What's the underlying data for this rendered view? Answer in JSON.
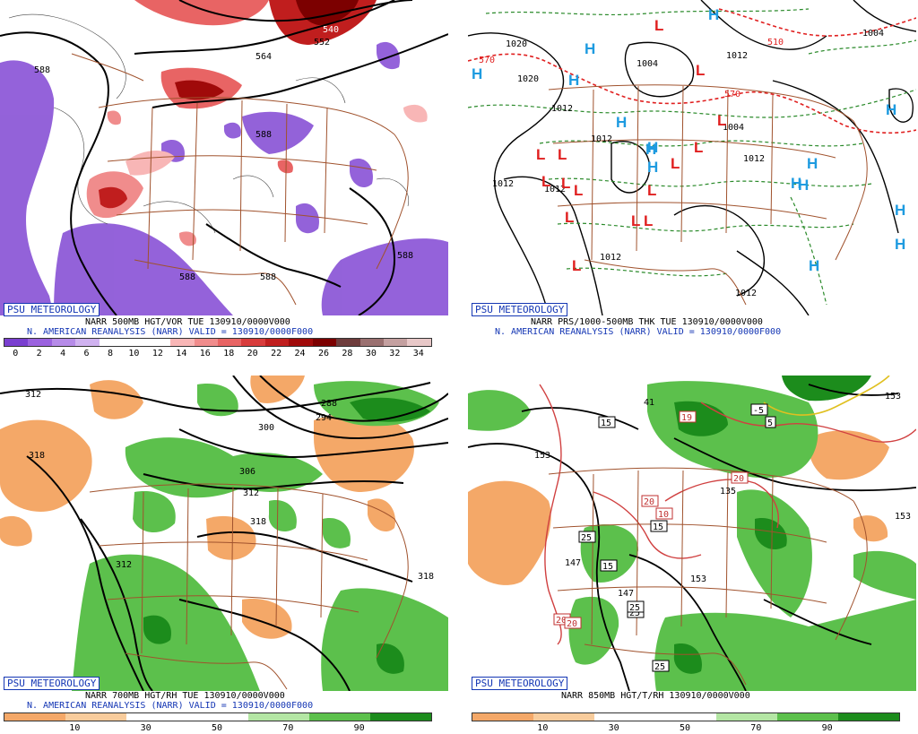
{
  "panels": [
    {
      "id": "vor500",
      "badge": "PSU METEOROLOGY",
      "caption1": "NARR 500MB HGT/VOR TUE 130910/0000V000",
      "caption2": "N. AMERICAN REANALYSIS (NARR) VALID = 130910/0000F000",
      "colorbar": {
        "colors": [
          "#7a3fd0",
          "#9b62df",
          "#b68be8",
          "#d0b2f0",
          "#ffffff",
          "#ffffff",
          "#ffffff",
          "#f8b6b6",
          "#f08c8c",
          "#e86464",
          "#d83c3c",
          "#c01e1e",
          "#a00a0a",
          "#7c0000",
          "#6e3c3c",
          "#9a7070",
          "#c4a0a0",
          "#e8c8c8"
        ],
        "ticks": [
          "0",
          "2",
          "4",
          "6",
          "8",
          "10",
          "12",
          "14",
          "16",
          "18",
          "20",
          "22",
          "24",
          "26",
          "28",
          "30",
          "32",
          "34"
        ]
      },
      "contour_labels": [
        "588",
        "564",
        "540",
        "552",
        "588",
        "588",
        "588",
        "588"
      ]
    },
    {
      "id": "prs",
      "badge": "PSU METEOROLOGY",
      "caption1": "NARR PRS/1000-500MB THK TUE 130910/0000V000",
      "caption2": "N. AMERICAN REANALYSIS (NARR) VALID = 130910/0000F000",
      "pressure_labels": [
        "1020",
        "1020",
        "1004",
        "1012",
        "1012",
        "1012",
        "1012",
        "1012",
        "1012",
        "1004",
        "1004",
        "1012",
        "1012"
      ],
      "thickness_labels": [
        "570",
        "510",
        "570"
      ],
      "high_letter": "H",
      "low_letter": "L"
    },
    {
      "id": "rh700",
      "badge": "PSU METEOROLOGY",
      "caption1": "NARR 700MB HGT/RH TUE 130910/0000V000",
      "caption2": "N. AMERICAN REANALYSIS (NARR) VALID = 130910/0000F000",
      "colorbar": {
        "colors": [
          "#f4a868",
          "#f8cc9c",
          "#ffffff",
          "#ffffff",
          "#b4e6a4",
          "#5cc04c",
          "#1c8c1c"
        ],
        "ticks": [
          "10",
          "30",
          "50",
          "70",
          "90"
        ]
      },
      "contour_labels": [
        "312",
        "318",
        "288",
        "294",
        "300",
        "306",
        "312",
        "318",
        "312",
        "318"
      ]
    },
    {
      "id": "t850",
      "badge": "PSU METEOROLOGY",
      "caption1": "NARR 850MB HGT/T/RH 130910/0000V000",
      "caption2": "",
      "colorbar": {
        "colors": [
          "#f4a868",
          "#f8cc9c",
          "#ffffff",
          "#ffffff",
          "#b4e6a4",
          "#5cc04c",
          "#1c8c1c"
        ],
        "ticks": [
          "10",
          "30",
          "50",
          "70",
          "90"
        ]
      },
      "height_labels": [
        "153",
        "153",
        "147",
        "147",
        "153",
        "153",
        "41",
        "135"
      ],
      "temp_labels": [
        "15",
        "15",
        "15",
        "25",
        "25",
        "25",
        "25",
        "5",
        "-5",
        "19",
        "20",
        "20",
        "10",
        "20",
        "20"
      ]
    }
  ]
}
